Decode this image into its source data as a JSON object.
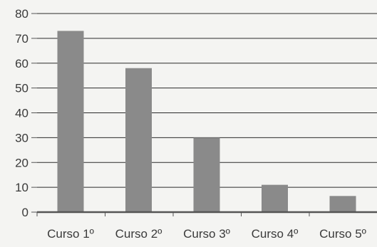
{
  "chart_data": {
    "type": "bar",
    "categories": [
      "Curso 1º",
      "Curso 2º",
      "Curso 3º",
      "Curso 4º",
      "Curso 5º"
    ],
    "values": [
      73,
      58,
      30,
      11,
      6.5
    ],
    "ylim": [
      0,
      80
    ],
    "yticks": [
      0,
      10,
      20,
      30,
      40,
      50,
      60,
      70,
      80
    ],
    "grid": true,
    "legend": "none",
    "colors": {
      "bar": "#8a8a8a",
      "grid": "#2b2b2b",
      "axis": "#555555",
      "text": "#3a3a3a",
      "background": "#f4f4f2"
    }
  }
}
